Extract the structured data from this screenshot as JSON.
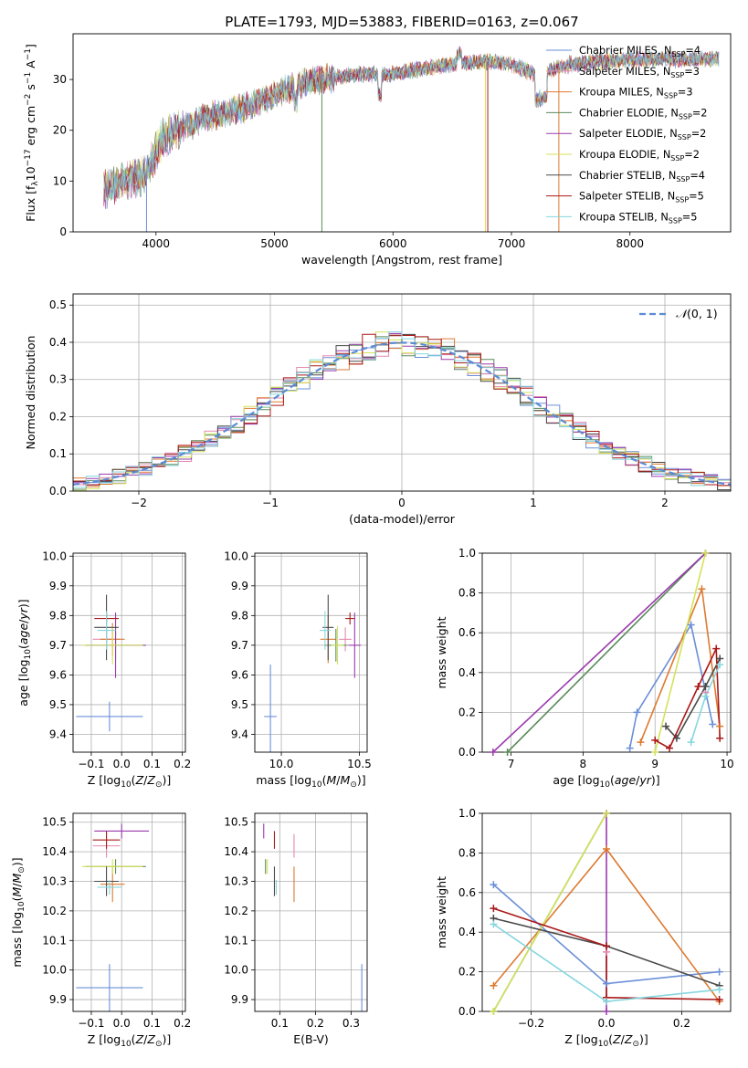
{
  "title": "PLATE=1793, MJD=53883, FIBERID=0163, z=0.067",
  "colors": [
    "#6a8fd8",
    "#e58ab0",
    "#dd7a30",
    "#5a8a5a",
    "#9a3aae",
    "#d4e25a",
    "#4a4a4a",
    "#aa1818",
    "#86d6de"
  ],
  "chart_data": [
    {
      "id": "spectrum",
      "type": "line",
      "xlabel": "wavelength [Angstrom, rest frame]",
      "ylabel": "Flux [f_λ10^-17 erg cm^-2 s^-1 A^-1]",
      "xlim": [
        3300,
        8850
      ],
      "ylim": [
        0,
        39
      ],
      "xticks": [
        4000,
        5000,
        6000,
        7000,
        8000
      ],
      "yticks": [
        0,
        10,
        20,
        30
      ],
      "grid": false,
      "legend_position": "top-right",
      "continuum": {
        "x": [
          3560,
          3700,
          3900,
          3950,
          4050,
          4250,
          4500,
          4800,
          5000,
          5200,
          5400,
          5700,
          6000,
          6200,
          6500,
          6800,
          7000,
          7200,
          7500,
          8000,
          8500,
          8750
        ],
        "y": [
          8,
          10,
          11,
          13,
          18,
          21,
          23,
          25,
          27,
          29,
          30,
          31,
          31,
          32,
          33,
          33.5,
          33,
          31,
          33,
          34,
          34,
          34
        ]
      },
      "legend": [
        {
          "name": "Chabrier MILES, N_SSP=4",
          "label": "Chabrier MILES, N",
          "sub": "SSP",
          "suffix": "=4"
        },
        {
          "name": "Salpeter MILES, N_SSP=3",
          "label": "Salpeter MILES, N",
          "sub": "SSP",
          "suffix": "=3"
        },
        {
          "name": "Kroupa MILES, N_SSP=3",
          "label": "Kroupa MILES, N",
          "sub": "SSP",
          "suffix": "=3"
        },
        {
          "name": "Chabrier ELODIE, N_SSP=2",
          "label": "Chabrier ELODIE, N",
          "sub": "SSP",
          "suffix": "=2"
        },
        {
          "name": "Salpeter ELODIE, N_SSP=2",
          "label": "Salpeter ELODIE, N",
          "sub": "SSP",
          "suffix": "=2"
        },
        {
          "name": "Kroupa ELODIE, N_SSP=2",
          "label": "Kroupa ELODIE, N",
          "sub": "SSP",
          "suffix": "=2"
        },
        {
          "name": "Chabrier STELIB, N_SSP=4",
          "label": "Chabrier STELIB, N",
          "sub": "SSP",
          "suffix": "=4"
        },
        {
          "name": "Salpeter STELIB, N_SSP=5",
          "label": "Salpeter STELIB, N",
          "sub": "SSP",
          "suffix": "=5"
        },
        {
          "name": "Kroupa STELIB, N_SSP=5",
          "label": "Kroupa STELIB, N",
          "sub": "SSP",
          "suffix": "=5"
        }
      ]
    },
    {
      "id": "residuals",
      "type": "histogram",
      "xlabel": "(data-model)/error",
      "ylabel": "Normed distribution",
      "xlim": [
        -2.5,
        2.5
      ],
      "ylim": [
        0,
        0.53
      ],
      "xticks": [
        -2,
        -1,
        0,
        1,
        2
      ],
      "yticks": [
        0.0,
        0.1,
        0.2,
        0.3,
        0.4,
        0.5
      ],
      "grid": true,
      "legend_position": "top-right",
      "reference_label": "N(0,1)",
      "bin_width": 0.1,
      "sample_counts": [
        0.02,
        0.03,
        0.04,
        0.05,
        0.06,
        0.08,
        0.1,
        0.12,
        0.14,
        0.17,
        0.2,
        0.23,
        0.26,
        0.29,
        0.32,
        0.35,
        0.38,
        0.4,
        0.42,
        0.43,
        0.44,
        0.45,
        0.44,
        0.42,
        0.4
      ]
    },
    {
      "id": "age-vs-Z",
      "type": "errorbar",
      "xlabel": "Z [log10(Z/Z⊙)]",
      "ylabel": "age [log10(age/yr)]",
      "xlim": [
        -0.16,
        0.21
      ],
      "ylim": [
        9.34,
        10.01
      ],
      "xticks": [
        -0.1,
        0.0,
        0.1,
        0.2
      ],
      "yticks": [
        9.4,
        9.5,
        9.6,
        9.7,
        9.8,
        9.9,
        10.0
      ],
      "grid": true,
      "points": [
        {
          "x": -0.04,
          "xerr": 0.22,
          "y": 9.46,
          "yerr": 0.1
        },
        {
          "x": -0.05,
          "xerr": 0.09,
          "y": 9.72,
          "yerr": 0.08
        },
        {
          "x": -0.03,
          "xerr": 0.08,
          "y": 9.72,
          "yerr": 0.11
        },
        {
          "x": -0.02,
          "xerr": 0.2,
          "y": 9.7,
          "yerr": 0.1
        },
        {
          "x": -0.02,
          "xerr": 0.2,
          "y": 9.7,
          "yerr": 0.22
        },
        {
          "x": -0.03,
          "xerr": 0.2,
          "y": 9.7,
          "yerr": 0.13
        },
        {
          "x": -0.05,
          "xerr": 0.08,
          "y": 9.76,
          "yerr": 0.22
        },
        {
          "x": -0.05,
          "xerr": 0.08,
          "y": 9.79,
          "yerr": 0.04
        },
        {
          "x": -0.05,
          "xerr": 0.06,
          "y": 9.75,
          "yerr": 0.13
        }
      ]
    },
    {
      "id": "age-vs-mass",
      "type": "errorbar",
      "xlabel": "mass [log10(M/M⊙)]",
      "ylabel": "",
      "xlim": [
        9.83,
        10.55
      ],
      "ylim": [
        9.34,
        10.01
      ],
      "xticks": [
        10.0,
        10.5
      ],
      "yticks": [
        9.4,
        9.5,
        9.6,
        9.7,
        9.8,
        9.9,
        10.0
      ],
      "grid": true,
      "points": [
        {
          "x": 9.93,
          "xerr": 0.08,
          "y": 9.46,
          "yerr": 0.35
        },
        {
          "x": 10.41,
          "xerr": 0.08,
          "y": 9.72,
          "yerr": 0.08
        },
        {
          "x": 10.3,
          "xerr": 0.1,
          "y": 9.72,
          "yerr": 0.16
        },
        {
          "x": 10.35,
          "xerr": 0.15,
          "y": 9.7,
          "yerr": 0.11
        },
        {
          "x": 10.47,
          "xerr": 0.08,
          "y": 9.7,
          "yerr": 0.22
        },
        {
          "x": 10.36,
          "xerr": 0.08,
          "y": 9.7,
          "yerr": 0.13
        },
        {
          "x": 10.3,
          "xerr": 0.07,
          "y": 9.76,
          "yerr": 0.22
        },
        {
          "x": 10.44,
          "xerr": 0.06,
          "y": 9.79,
          "yerr": 0.04
        },
        {
          "x": 10.28,
          "xerr": 0.07,
          "y": 9.75,
          "yerr": 0.13
        }
      ]
    },
    {
      "id": "weight-vs-age",
      "type": "line",
      "xlabel": "age [log10(age/yr)]",
      "ylabel": "mass weight",
      "xlim": [
        6.6,
        10.05
      ],
      "ylim": [
        0,
        1
      ],
      "xticks": [
        7,
        8,
        9,
        10
      ],
      "yticks": [
        0.0,
        0.2,
        0.4,
        0.6,
        0.8,
        1.0
      ],
      "grid": true,
      "series": [
        {
          "x": [
            8.65,
            8.75,
            9.5,
            9.8
          ],
          "y": [
            0.02,
            0.2,
            0.64,
            0.14
          ]
        },
        {
          "x": [
            9.7
          ],
          "y": [
            0.3
          ]
        },
        {
          "x": [
            8.8,
            9.65,
            9.9
          ],
          "y": [
            0.05,
            0.82,
            0.13
          ]
        },
        {
          "x": [
            6.95,
            9.7
          ],
          "y": [
            0.0,
            1.0
          ]
        },
        {
          "x": [
            6.75,
            9.7
          ],
          "y": [
            0.0,
            1.0
          ]
        },
        {
          "x": [
            9.0,
            9.7
          ],
          "y": [
            0.0,
            1.0
          ]
        },
        {
          "x": [
            9.15,
            9.3,
            9.7,
            9.9
          ],
          "y": [
            0.13,
            0.07,
            0.33,
            0.47
          ]
        },
        {
          "x": [
            9.0,
            9.2,
            9.6,
            9.85,
            9.9
          ],
          "y": [
            0.06,
            0.02,
            0.33,
            0.52,
            0.07
          ]
        },
        {
          "x": [
            9.5,
            9.7,
            9.9
          ],
          "y": [
            0.05,
            0.28,
            0.44
          ]
        }
      ]
    },
    {
      "id": "mass-vs-Z",
      "type": "errorbar",
      "xlabel": "Z [log10(Z/Z⊙)]",
      "ylabel": "mass [log10(M/M⊙)]",
      "xlim": [
        -0.16,
        0.21
      ],
      "ylim": [
        9.86,
        10.53
      ],
      "xticks": [
        -0.1,
        0.0,
        0.1,
        0.2
      ],
      "yticks": [
        9.9,
        10.0,
        10.1,
        10.2,
        10.3,
        10.4,
        10.5
      ],
      "grid": true,
      "points": [
        {
          "x": -0.04,
          "xerr": 0.22,
          "y": 9.94,
          "yerr": 0.16
        },
        {
          "x": -0.05,
          "xerr": 0.09,
          "y": 10.42,
          "yerr": 0.08
        },
        {
          "x": -0.03,
          "xerr": 0.08,
          "y": 10.29,
          "yerr": 0.12
        },
        {
          "x": -0.02,
          "xerr": 0.2,
          "y": 10.35,
          "yerr": 0.05
        },
        {
          "x": 0.0,
          "xerr": 0.18,
          "y": 10.47,
          "yerr": 0.05
        },
        {
          "x": -0.03,
          "xerr": 0.2,
          "y": 10.35,
          "yerr": 0.05
        },
        {
          "x": -0.05,
          "xerr": 0.08,
          "y": 10.3,
          "yerr": 0.1
        },
        {
          "x": -0.05,
          "xerr": 0.09,
          "y": 10.44,
          "yerr": 0.06
        },
        {
          "x": -0.04,
          "xerr": 0.08,
          "y": 10.28,
          "yerr": 0.05
        }
      ]
    },
    {
      "id": "mass-vs-ebv",
      "type": "errorbar",
      "xlabel": "E(B-V)",
      "ylabel": "",
      "xlim": [
        0.03,
        0.345
      ],
      "ylim": [
        9.86,
        10.53
      ],
      "xticks": [
        0.1,
        0.2,
        0.3
      ],
      "yticks": [
        9.9,
        10.0,
        10.1,
        10.2,
        10.3,
        10.4,
        10.5
      ],
      "grid": true,
      "points": [
        {
          "x": 0.33,
          "xerr": 0.0,
          "y": 9.94,
          "yerr": 0.16
        },
        {
          "x": 0.14,
          "xerr": 0.0,
          "y": 10.42,
          "yerr": 0.08
        },
        {
          "x": 0.14,
          "xerr": 0.0,
          "y": 10.29,
          "yerr": 0.12
        },
        {
          "x": 0.06,
          "xerr": 0.0,
          "y": 10.35,
          "yerr": 0.05
        },
        {
          "x": 0.055,
          "xerr": 0.0,
          "y": 10.47,
          "yerr": 0.05
        },
        {
          "x": 0.065,
          "xerr": 0.0,
          "y": 10.35,
          "yerr": 0.05
        },
        {
          "x": 0.085,
          "xerr": 0.0,
          "y": 10.3,
          "yerr": 0.1
        },
        {
          "x": 0.085,
          "xerr": 0.0,
          "y": 10.44,
          "yerr": 0.06
        },
        {
          "x": 0.09,
          "xerr": 0.0,
          "y": 10.28,
          "yerr": 0.05
        }
      ]
    },
    {
      "id": "weight-vs-Z",
      "type": "line",
      "xlabel": "Z [log10(Z/Z⊙)]",
      "ylabel": "mass weight",
      "xlim": [
        -0.33,
        0.33
      ],
      "ylim": [
        0,
        1
      ],
      "xticks": [
        -0.2,
        0.0,
        0.2
      ],
      "yticks": [
        0.0,
        0.2,
        0.4,
        0.6,
        0.8,
        1.0
      ],
      "grid": true,
      "series": [
        {
          "x": [
            -0.3,
            0.0,
            0.3
          ],
          "y": [
            0.64,
            0.14,
            0.2
          ]
        },
        {
          "x": [
            0.0
          ],
          "y": [
            0.3
          ]
        },
        {
          "x": [
            -0.3,
            0.0,
            0.3
          ],
          "y": [
            0.13,
            0.82,
            0.05
          ]
        },
        {
          "x": [
            -0.3,
            0.0
          ],
          "y": [
            0.0,
            1.0
          ]
        },
        {
          "x": [
            0.0,
            0.0
          ],
          "y": [
            0.0,
            1.0
          ]
        },
        {
          "x": [
            -0.3,
            0.0
          ],
          "y": [
            0.0,
            1.0
          ]
        },
        {
          "x": [
            -0.3,
            0.0,
            0.3
          ],
          "y": [
            0.47,
            0.33,
            0.13
          ]
        },
        {
          "x": [
            -0.3,
            0.0,
            0.0,
            0.3
          ],
          "y": [
            0.52,
            0.33,
            0.07,
            0.06
          ]
        },
        {
          "x": [
            -0.3,
            0.0,
            0.3
          ],
          "y": [
            0.44,
            0.05,
            0.11
          ]
        }
      ]
    }
  ]
}
